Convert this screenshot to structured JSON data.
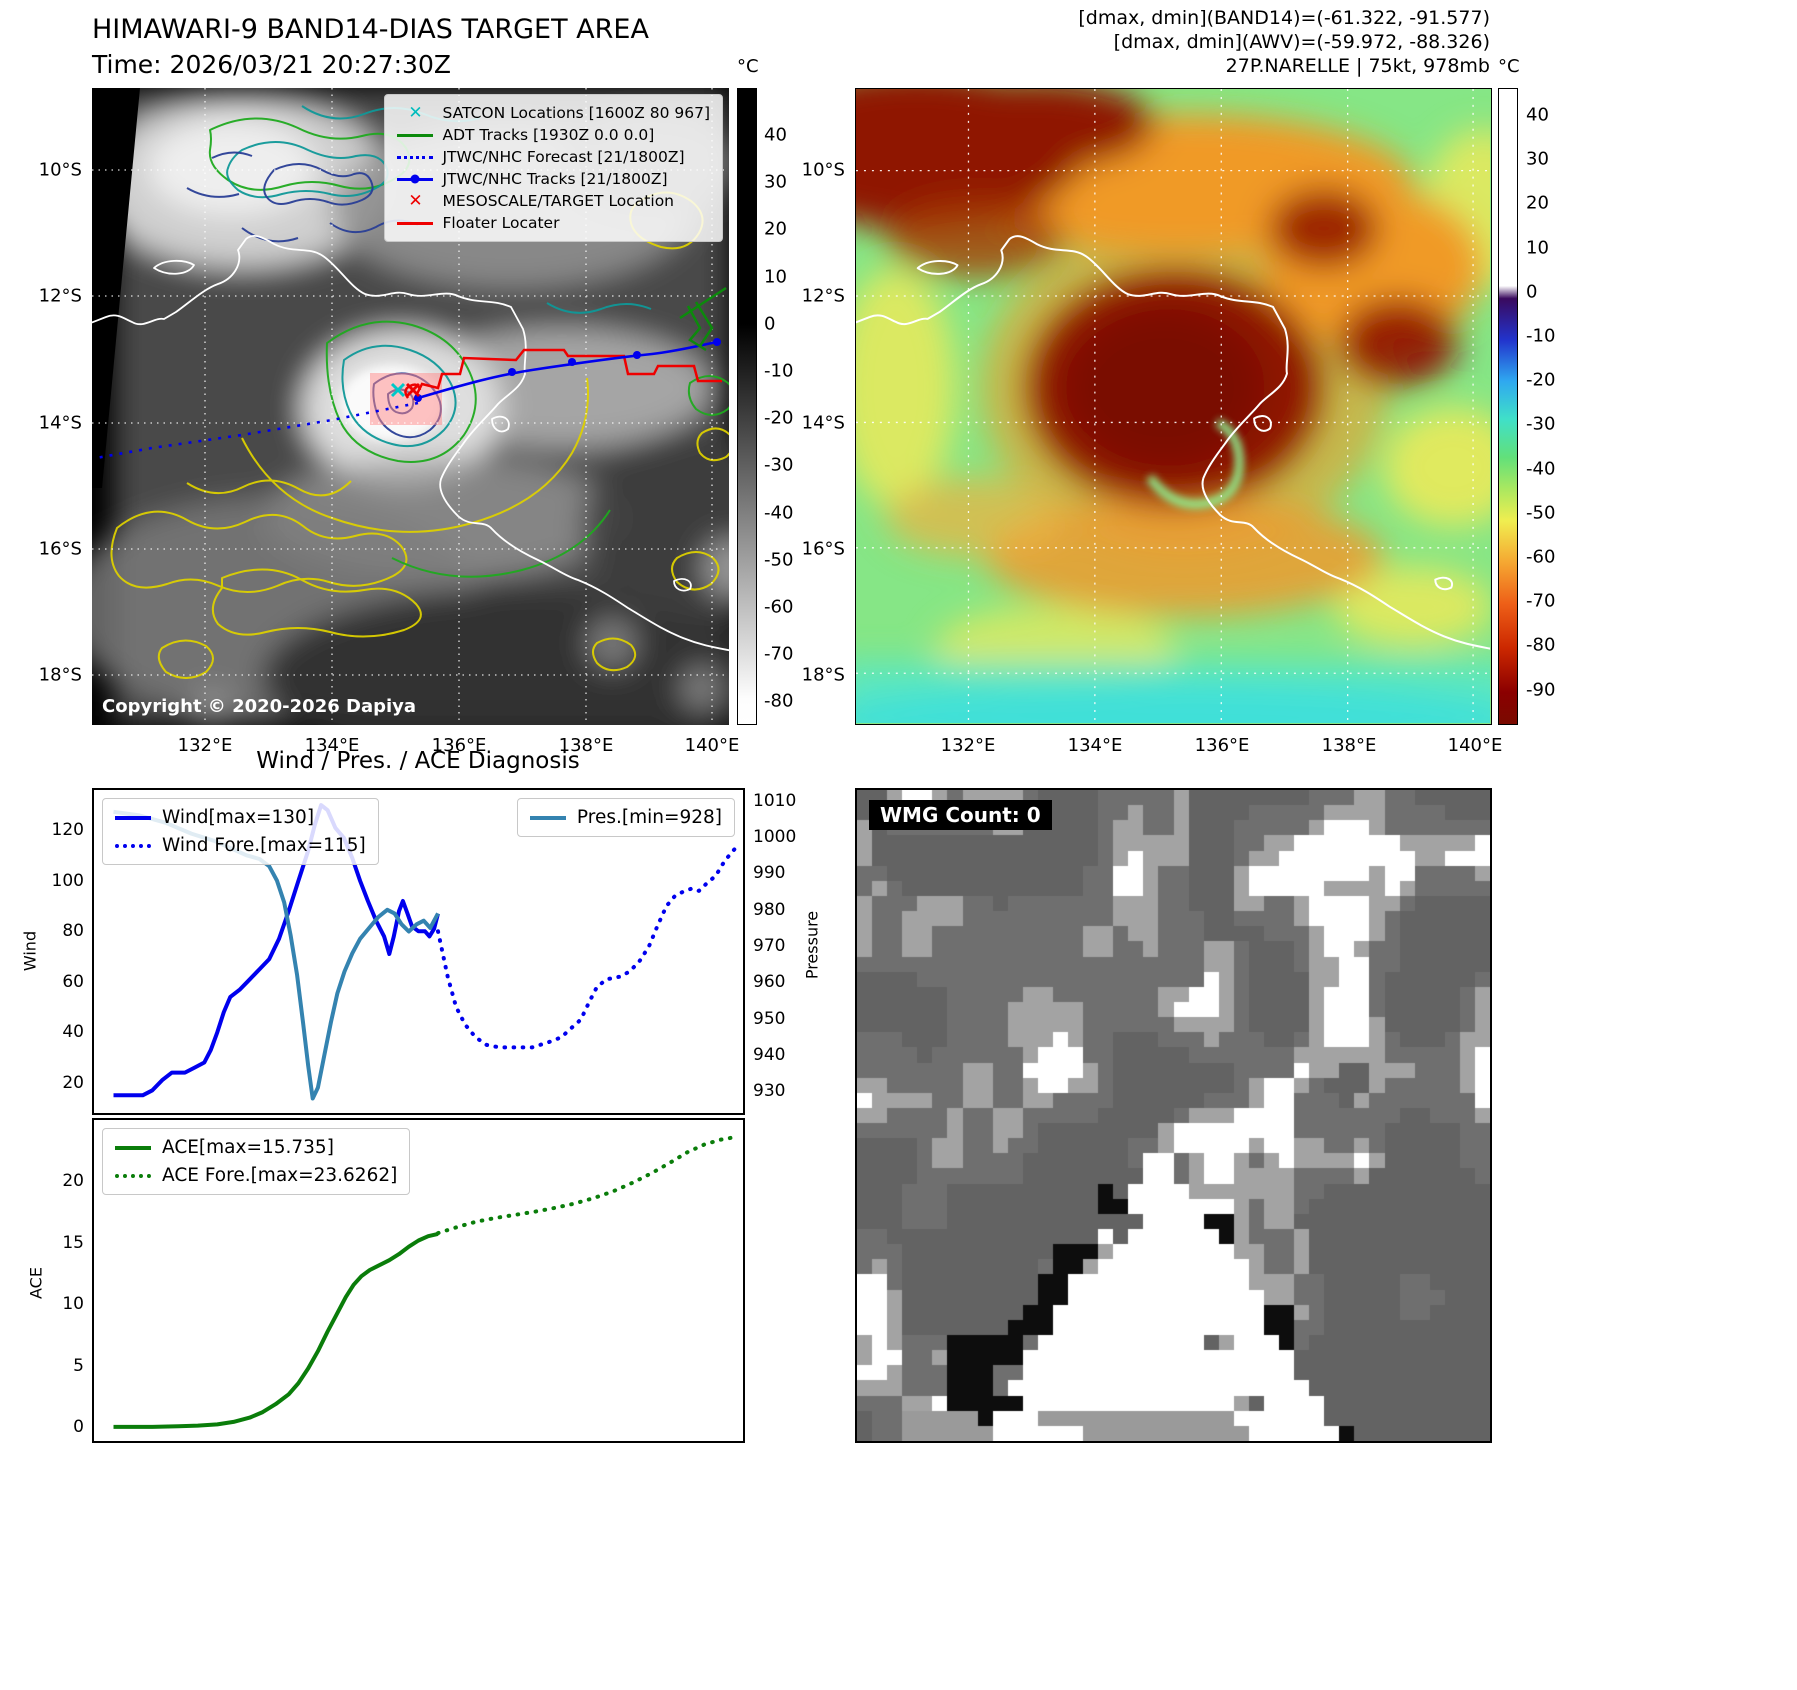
{
  "band14_panel": {
    "title": "HIMAWARI-9 BAND14-DIAS TARGET AREA",
    "time_label": "Time: 2026/03/21 20:27:30Z",
    "copyright": "Copyright © 2020-2026 Dapiya",
    "legend": [
      {
        "label": "SATCON Locations [1600Z 80 967]",
        "marker": "x",
        "color": "#00bcbc"
      },
      {
        "label": "ADT Tracks [1930Z 0.0 0.0]",
        "marker": "line",
        "color": "#0c8a0c"
      },
      {
        "label": "JTWC/NHC Forecast [21/1800Z]",
        "marker": "dotted",
        "color": "#0000ee"
      },
      {
        "label": "JTWC/NHC Tracks [21/1800Z]",
        "marker": "line-dot",
        "color": "#0000ee"
      },
      {
        "label": "MESOSCALE/TARGET Location",
        "marker": "x",
        "color": "#ee0000"
      },
      {
        "label": "Floater Locater",
        "marker": "line",
        "color": "#ee0000"
      }
    ],
    "lat_ticks": [
      "10°S",
      "12°S",
      "14°S",
      "16°S",
      "18°S"
    ],
    "lon_ticks": [
      "132°E",
      "134°E",
      "136°E",
      "138°E",
      "140°E"
    ],
    "colorbar": {
      "unit": "°C",
      "ticks": [
        40,
        30,
        20,
        10,
        0,
        -10,
        -20,
        -30,
        -40,
        -50,
        -60,
        -70,
        -80
      ]
    }
  },
  "awv_panel": {
    "header_line1": "[dmax, dmin](BAND14)=(-61.322, -91.577)",
    "header_line2": "[dmax, dmin](AWV)=(-59.972, -88.326)",
    "header_line3": "27P.NARELLE | 75kt, 978mb",
    "lat_ticks": [
      "10°S",
      "12°S",
      "14°S",
      "16°S",
      "18°S"
    ],
    "lon_ticks": [
      "132°E",
      "134°E",
      "136°E",
      "138°E",
      "140°E"
    ],
    "colorbar": {
      "unit": "°C",
      "ticks": [
        40,
        30,
        20,
        10,
        0,
        -10,
        -20,
        -30,
        -40,
        -50,
        -60,
        -70,
        -80,
        -90
      ]
    }
  },
  "diagnosis": {
    "title": "Wind / Pres. / ACE Diagnosis"
  },
  "wmg_panel": {
    "count_label": "WMG Count: 0"
  },
  "chart_data": [
    {
      "type": "line",
      "title": "Wind / Pres. / ACE Diagnosis",
      "ylabel_left": "Wind",
      "ylabel_right": "Pressure",
      "ylim_left": [
        8,
        136
      ],
      "ylim_right": [
        924,
        1013
      ],
      "yticks_left": [
        120,
        100,
        80,
        60,
        40,
        20
      ],
      "yticks_right": [
        1010,
        1000,
        990,
        980,
        970,
        960,
        950,
        940,
        930
      ],
      "x_ticks_visible": false,
      "legend_positions": [
        "upper-left",
        "upper-right"
      ],
      "series": [
        {
          "name": "Wind[max=130]",
          "axis": "left",
          "style": "solid",
          "color": "#0000ee",
          "width": 4,
          "points": [
            [
              0.03,
              15
            ],
            [
              0.055,
              15
            ],
            [
              0.075,
              15
            ],
            [
              0.09,
              17
            ],
            [
              0.105,
              21
            ],
            [
              0.12,
              24
            ],
            [
              0.14,
              24
            ],
            [
              0.155,
              26
            ],
            [
              0.17,
              28
            ],
            [
              0.18,
              33
            ],
            [
              0.19,
              40
            ],
            [
              0.2,
              48
            ],
            [
              0.21,
              54
            ],
            [
              0.225,
              57
            ],
            [
              0.24,
              61
            ],
            [
              0.255,
              65
            ],
            [
              0.27,
              69
            ],
            [
              0.285,
              77
            ],
            [
              0.3,
              88
            ],
            [
              0.315,
              100
            ],
            [
              0.33,
              112
            ],
            [
              0.34,
              122
            ],
            [
              0.35,
              130
            ],
            [
              0.36,
              128
            ],
            [
              0.372,
              121
            ],
            [
              0.385,
              117
            ],
            [
              0.398,
              109
            ],
            [
              0.41,
              100
            ],
            [
              0.422,
              92
            ],
            [
              0.435,
              84
            ],
            [
              0.447,
              78
            ],
            [
              0.455,
              71
            ],
            [
              0.462,
              78
            ],
            [
              0.47,
              88
            ],
            [
              0.476,
              92
            ],
            [
              0.483,
              87
            ],
            [
              0.49,
              82
            ],
            [
              0.5,
              80
            ],
            [
              0.51,
              80
            ],
            [
              0.517,
              78
            ],
            [
              0.524,
              81
            ],
            [
              0.53,
              87
            ]
          ]
        },
        {
          "name": "Wind Fore.[max=115]",
          "axis": "left",
          "style": "dotted",
          "color": "#0000ee",
          "width": 4,
          "points": [
            [
              0.53,
              80
            ],
            [
              0.545,
              62
            ],
            [
              0.558,
              50
            ],
            [
              0.572,
              43
            ],
            [
              0.588,
              38
            ],
            [
              0.605,
              35
            ],
            [
              0.625,
              34
            ],
            [
              0.65,
              34
            ],
            [
              0.675,
              34
            ],
            [
              0.7,
              36
            ],
            [
              0.72,
              38
            ],
            [
              0.737,
              42
            ],
            [
              0.75,
              45
            ],
            [
              0.763,
              52
            ],
            [
              0.775,
              58
            ],
            [
              0.79,
              61
            ],
            [
              0.81,
              62
            ],
            [
              0.825,
              64
            ],
            [
              0.84,
              68
            ],
            [
              0.855,
              74
            ],
            [
              0.868,
              82
            ],
            [
              0.882,
              90
            ],
            [
              0.895,
              94
            ],
            [
              0.91,
              96
            ],
            [
              0.922,
              97
            ],
            [
              0.932,
              96
            ],
            [
              0.944,
              99
            ],
            [
              0.958,
              102
            ],
            [
              0.972,
              108
            ],
            [
              0.985,
              112
            ],
            [
              0.995,
              115
            ]
          ]
        },
        {
          "name": "Pres.[min=928]",
          "axis": "right",
          "style": "solid",
          "color": "#3483b0",
          "width": 4,
          "points": [
            [
              0.03,
              1007
            ],
            [
              0.07,
              1006
            ],
            [
              0.11,
              1004
            ],
            [
              0.15,
              1001
            ],
            [
              0.185,
              999
            ],
            [
              0.21,
              997
            ],
            [
              0.235,
              995
            ],
            [
              0.255,
              994
            ],
            [
              0.27,
              992
            ],
            [
              0.282,
              988
            ],
            [
              0.293,
              982
            ],
            [
              0.303,
              973
            ],
            [
              0.313,
              962
            ],
            [
              0.322,
              949
            ],
            [
              0.33,
              937
            ],
            [
              0.337,
              928
            ],
            [
              0.345,
              931
            ],
            [
              0.355,
              940
            ],
            [
              0.365,
              949
            ],
            [
              0.375,
              957
            ],
            [
              0.386,
              963
            ],
            [
              0.398,
              968
            ],
            [
              0.41,
              972
            ],
            [
              0.424,
              975
            ],
            [
              0.438,
              978
            ],
            [
              0.452,
              980
            ],
            [
              0.463,
              979
            ],
            [
              0.474,
              976
            ],
            [
              0.485,
              974
            ],
            [
              0.497,
              976
            ],
            [
              0.508,
              977
            ],
            [
              0.518,
              975
            ],
            [
              0.53,
              979
            ]
          ]
        }
      ]
    },
    {
      "type": "line",
      "ylabel": "ACE",
      "ylim": [
        -1.1,
        25
      ],
      "yticks": [
        20,
        15,
        10,
        5,
        0
      ],
      "x_ticks_visible": false,
      "legend_positions": [
        "upper-left"
      ],
      "series": [
        {
          "name": "ACE[max=15.735]",
          "style": "solid",
          "color": "#0a7d0a",
          "width": 4,
          "points": [
            [
              0.03,
              0.05
            ],
            [
              0.09,
              0.05
            ],
            [
              0.13,
              0.1
            ],
            [
              0.16,
              0.15
            ],
            [
              0.19,
              0.25
            ],
            [
              0.215,
              0.45
            ],
            [
              0.24,
              0.8
            ],
            [
              0.26,
              1.25
            ],
            [
              0.28,
              1.9
            ],
            [
              0.3,
              2.7
            ],
            [
              0.315,
              3.6
            ],
            [
              0.33,
              4.8
            ],
            [
              0.345,
              6.2
            ],
            [
              0.36,
              7.8
            ],
            [
              0.374,
              9.2
            ],
            [
              0.388,
              10.6
            ],
            [
              0.4,
              11.6
            ],
            [
              0.412,
              12.3
            ],
            [
              0.425,
              12.8
            ],
            [
              0.44,
              13.2
            ],
            [
              0.455,
              13.6
            ],
            [
              0.47,
              14.1
            ],
            [
              0.485,
              14.7
            ],
            [
              0.5,
              15.2
            ],
            [
              0.515,
              15.55
            ],
            [
              0.53,
              15.735
            ]
          ]
        },
        {
          "name": "ACE Fore.[max=23.6262]",
          "style": "dotted",
          "color": "#0a7d0a",
          "width": 4,
          "points": [
            [
              0.53,
              15.8
            ],
            [
              0.56,
              16.3
            ],
            [
              0.59,
              16.75
            ],
            [
              0.62,
              17.05
            ],
            [
              0.65,
              17.3
            ],
            [
              0.68,
              17.55
            ],
            [
              0.71,
              17.85
            ],
            [
              0.74,
              18.2
            ],
            [
              0.77,
              18.65
            ],
            [
              0.8,
              19.2
            ],
            [
              0.83,
              19.9
            ],
            [
              0.86,
              20.7
            ],
            [
              0.89,
              21.6
            ],
            [
              0.915,
              22.4
            ],
            [
              0.94,
              23.0
            ],
            [
              0.965,
              23.4
            ],
            [
              0.99,
              23.6262
            ]
          ]
        }
      ]
    }
  ]
}
